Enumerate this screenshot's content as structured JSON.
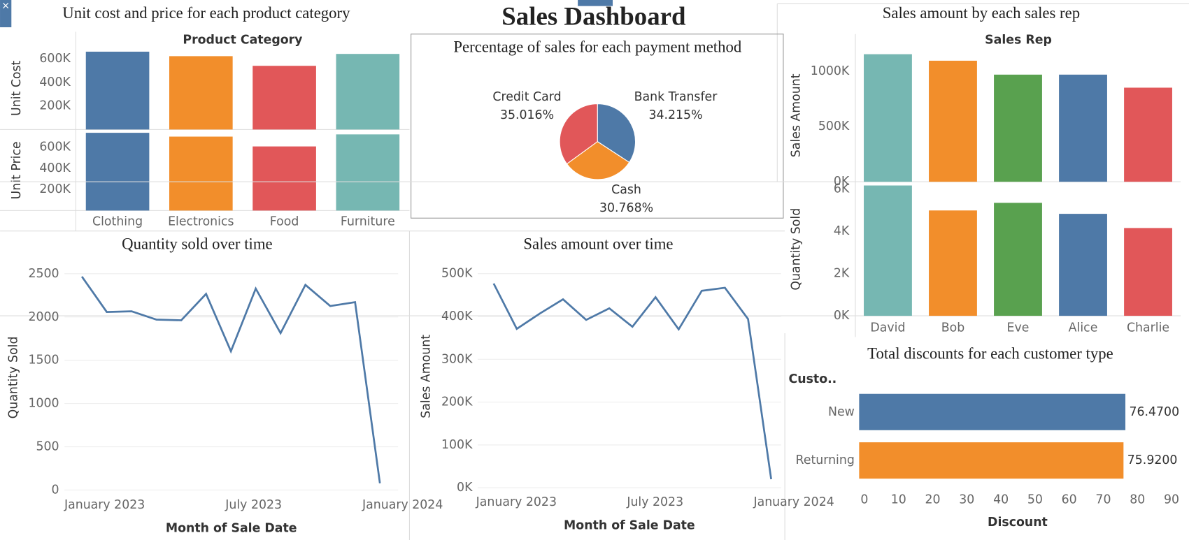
{
  "title": "Sales Dashboard",
  "chart_data": [
    {
      "type": "bar",
      "title": "Unit cost and price for each product category",
      "header": "Product Category",
      "categories": [
        "Clothing",
        "Electronics",
        "Food",
        "Furniture"
      ],
      "colors": [
        "#4e79a7",
        "#f28e2b",
        "#e15759",
        "#76b7b2"
      ],
      "panels": [
        {
          "name": "Unit Cost",
          "values": [
            660000,
            622000,
            540000,
            641000
          ],
          "ylim": [
            0,
            700000
          ],
          "yticks": [
            {
              "value": 200000,
              "label": "200K"
            },
            {
              "value": 400000,
              "label": "400K"
            },
            {
              "value": 600000,
              "label": "600K"
            }
          ]
        },
        {
          "name": "Unit Price",
          "values": [
            736000,
            700000,
            607000,
            721000
          ],
          "ylim": [
            0,
            760000
          ],
          "yticks": [
            {
              "value": 200000,
              "label": "200K"
            },
            {
              "value": 400000,
              "label": "400K"
            },
            {
              "value": 600000,
              "label": "600K"
            }
          ]
        }
      ]
    },
    {
      "type": "pie",
      "title": "Percentage of sales for each payment method",
      "categories": [
        "Credit Card",
        "Bank Transfer",
        "Cash"
      ],
      "values": [
        35.016,
        34.215,
        30.768
      ],
      "value_labels": [
        "35.016%",
        "34.215%",
        "30.768%"
      ],
      "colors": [
        "#e15759",
        "#4e79a7",
        "#f28e2b"
      ]
    },
    {
      "type": "bar",
      "title": "Sales amount by each sales rep",
      "header": "Sales Rep",
      "categories": [
        "David",
        "Bob",
        "Eve",
        "Alice",
        "Charlie"
      ],
      "colors": [
        "#76b7b2",
        "#f28e2b",
        "#59a14f",
        "#4e79a7",
        "#e15759"
      ],
      "panels": [
        {
          "name": "Sales Amount",
          "values": [
            1155000,
            1096000,
            970000,
            970000,
            852000
          ],
          "ylim": [
            0,
            1200000
          ],
          "yticks": [
            {
              "value": 0,
              "label": "0K"
            },
            {
              "value": 500000,
              "label": "500K"
            },
            {
              "value": 1000000,
              "label": "1000K"
            }
          ]
        },
        {
          "name": "Quantity Sold",
          "values": [
            6160,
            4980,
            5340,
            4820,
            4150
          ],
          "ylim": [
            0,
            6300
          ],
          "yticks": [
            {
              "value": 0,
              "label": "0K"
            },
            {
              "value": 2000,
              "label": "2K"
            },
            {
              "value": 4000,
              "label": "4K"
            },
            {
              "value": 6000,
              "label": "6K"
            }
          ]
        }
      ]
    },
    {
      "type": "line",
      "title": "Quantity sold over time",
      "x": [
        "January 2023",
        null,
        null,
        null,
        null,
        null,
        "July 2023",
        null,
        null,
        null,
        null,
        null,
        "January 2024"
      ],
      "values": [
        2467,
        2058,
        2066,
        1970,
        1962,
        2267,
        1604,
        2328,
        1813,
        2371,
        2127,
        2171,
        78
      ],
      "color": "#4e79a7",
      "xlabel": "Month of Sale Date",
      "ylabel": "Quantity Sold",
      "ylim": [
        0,
        2600
      ],
      "yticks": [
        0,
        500,
        1000,
        1500,
        2000,
        2500
      ],
      "grid": true
    },
    {
      "type": "line",
      "title": "Sales amount over time",
      "x": [
        "January 2023",
        null,
        null,
        null,
        null,
        null,
        "July 2023",
        null,
        null,
        null,
        null,
        null,
        "January 2024"
      ],
      "values": [
        477000,
        371000,
        407000,
        440000,
        392000,
        419000,
        376000,
        445000,
        370000,
        460000,
        467000,
        394000,
        20000
      ],
      "color": "#4e79a7",
      "xlabel": "Month of Sale Date",
      "ylabel": "Sales Amount",
      "ylim": [
        0,
        520000
      ],
      "yticks": [
        {
          "value": 0,
          "label": "0K"
        },
        {
          "value": 100000,
          "label": "100K"
        },
        {
          "value": 200000,
          "label": "200K"
        },
        {
          "value": 300000,
          "label": "300K"
        },
        {
          "value": 400000,
          "label": "400K"
        },
        {
          "value": 500000,
          "label": "500K"
        }
      ],
      "grid": true
    },
    {
      "type": "hbar",
      "title": "Total discounts for each customer type",
      "header": "Custo..",
      "categories": [
        "New",
        "Returning"
      ],
      "values": [
        76.47,
        75.92
      ],
      "value_labels": [
        "76.4700",
        "75.9200"
      ],
      "colors": [
        "#4e79a7",
        "#f28e2b"
      ],
      "xlabel": "Discount",
      "xlim": [
        0,
        92
      ],
      "xticks": [
        0,
        10,
        20,
        30,
        40,
        50,
        60,
        70,
        80,
        90
      ]
    }
  ]
}
